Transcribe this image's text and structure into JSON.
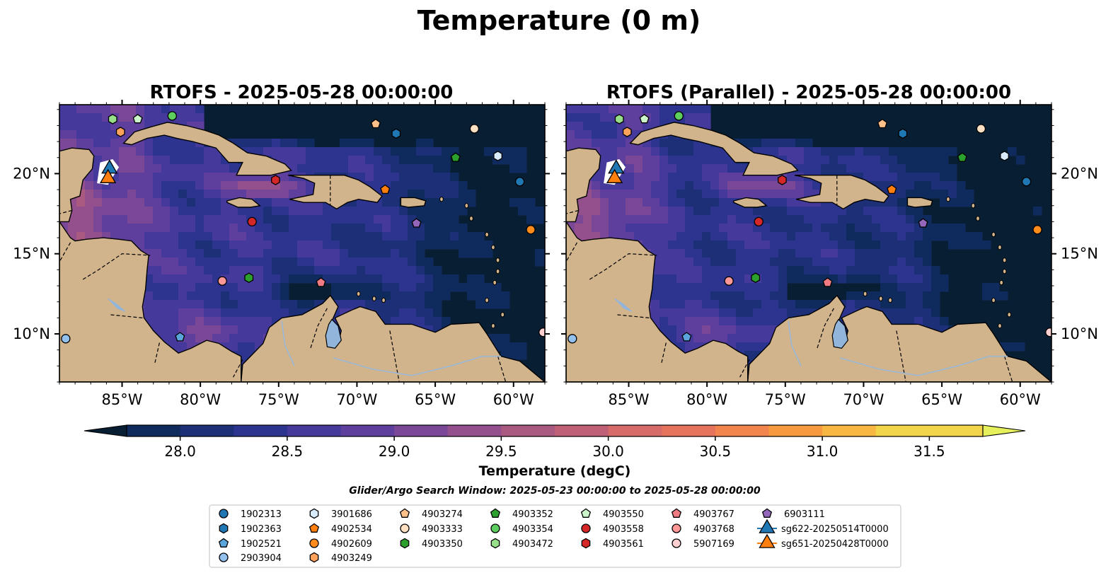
{
  "figure": {
    "suptitle": "Temperature (0 m)",
    "panels": [
      {
        "title": "RTOFS - 2025-05-28 00:00:00",
        "variant": "operational"
      },
      {
        "title": "RTOFS (Parallel) - 2025-05-28 00:00:00",
        "variant": "parallel"
      }
    ],
    "colorbar": {
      "label": "Temperature (degC)",
      "ticks": [
        "28.0",
        "28.5",
        "29.0",
        "29.5",
        "30.0",
        "30.5",
        "31.0",
        "31.5"
      ],
      "extend": "both"
    },
    "search_window": "Glider/Argo Search Window: 2025-05-23 00:00:00 to 2025-05-28 00:00:00"
  },
  "chart_data": {
    "type": "heatmap",
    "variable": "Temperature",
    "units": "degC",
    "depth": "0 m",
    "lon_range": [
      -89,
      -58
    ],
    "lat_range": [
      7,
      24.3
    ],
    "x_ticks": [
      {
        "value": -85,
        "label": "85°W"
      },
      {
        "value": -80,
        "label": "80°W"
      },
      {
        "value": -75,
        "label": "75°W"
      },
      {
        "value": -70,
        "label": "70°W"
      },
      {
        "value": -65,
        "label": "65°W"
      },
      {
        "value": -60,
        "label": "60°W"
      }
    ],
    "y_ticks": [
      {
        "value": 10,
        "label": "10°N"
      },
      {
        "value": 15,
        "label": "15°N"
      },
      {
        "value": 20,
        "label": "20°N"
      }
    ],
    "color_levels": [
      27.75,
      28.0,
      28.25,
      28.5,
      28.75,
      29.0,
      29.25,
      29.5,
      29.75,
      30.0,
      30.25,
      30.5,
      30.75,
      31.0,
      31.25,
      31.5,
      31.75
    ],
    "colormap": [
      "#081f33",
      "#0f2a5c",
      "#1c2f77",
      "#2d348f",
      "#46399c",
      "#5e3f9e",
      "#7a4896",
      "#93508c",
      "#aa5a81",
      "#c06076",
      "#d66b6a",
      "#e6735c",
      "#f2844d",
      "#f79a3f",
      "#f8b642",
      "#f3d54c",
      "#e5f05c"
    ],
    "land_color": "#d2b48c",
    "water_color": "#92b5dc",
    "platforms": [
      {
        "id": "1902313",
        "lon": -59.6,
        "lat": 19.5,
        "marker": "circle",
        "color": "#1f77b4"
      },
      {
        "id": "1902363",
        "lon": -67.5,
        "lat": 22.5,
        "marker": "hexagon",
        "color": "#1f77b4"
      },
      {
        "id": "1902521",
        "lon": -81.3,
        "lat": 9.8,
        "marker": "pentagon",
        "color": "#5aa5dc"
      },
      {
        "id": "2903904",
        "lon": -88.6,
        "lat": 9.7,
        "marker": "circle",
        "color": "#92c1ee"
      },
      {
        "id": "3901686",
        "lon": -61.0,
        "lat": 21.1,
        "marker": "hexagon",
        "color": "#d8ebfb"
      },
      {
        "id": "4902534",
        "lon": -68.2,
        "lat": 19.0,
        "marker": "pentagon",
        "color": "#ff7f0e"
      },
      {
        "id": "4902609",
        "lon": -58.9,
        "lat": 16.5,
        "marker": "circle",
        "color": "#ff8c1a"
      },
      {
        "id": "4903249",
        "lon": -85.1,
        "lat": 22.6,
        "marker": "hexagon",
        "color": "#ffa35c"
      },
      {
        "id": "4903274",
        "lon": -68.8,
        "lat": 23.1,
        "marker": "pentagon",
        "color": "#ffc08a"
      },
      {
        "id": "4903333",
        "lon": -62.5,
        "lat": 22.8,
        "marker": "circle",
        "color": "#ffe0c2"
      },
      {
        "id": "4903350",
        "lon": -76.9,
        "lat": 13.5,
        "marker": "hexagon",
        "color": "#2ca02c"
      },
      {
        "id": "4903352",
        "lon": -63.7,
        "lat": 21.0,
        "marker": "pentagon",
        "color": "#2ca02c"
      },
      {
        "id": "4903354",
        "lon": -81.8,
        "lat": 23.6,
        "marker": "circle",
        "color": "#5ecf5e"
      },
      {
        "id": "4903472",
        "lon": -85.6,
        "lat": 23.4,
        "marker": "hexagon",
        "color": "#98df8a"
      },
      {
        "id": "4903550",
        "lon": -84.0,
        "lat": 23.4,
        "marker": "pentagon",
        "color": "#ccf5cc"
      },
      {
        "id": "4903558",
        "lon": -76.7,
        "lat": 17.0,
        "marker": "circle",
        "color": "#d62728"
      },
      {
        "id": "4903561",
        "lon": -75.2,
        "lat": 19.6,
        "marker": "hexagon",
        "color": "#d62728"
      },
      {
        "id": "4903767",
        "lon": -72.3,
        "lat": 13.2,
        "marker": "pentagon",
        "color": "#f07b82"
      },
      {
        "id": "4903768",
        "lon": -78.6,
        "lat": 13.3,
        "marker": "circle",
        "color": "#ff9896"
      },
      {
        "id": "5907169",
        "lon": -58.1,
        "lat": 10.1,
        "marker": "circle",
        "color": "#ffd0d0"
      },
      {
        "id": "6903111",
        "lon": -66.2,
        "lat": 16.9,
        "marker": "pentagon",
        "color": "#9467bd"
      },
      {
        "id": "sg622-20250514T0000",
        "lon": -85.8,
        "lat": 20.3,
        "marker": "triangle",
        "color": "#1f77b4"
      },
      {
        "id": "sg651-20250428T0000",
        "lon": -85.9,
        "lat": 19.7,
        "marker": "triangle",
        "color": "#ff7f0e"
      }
    ]
  }
}
